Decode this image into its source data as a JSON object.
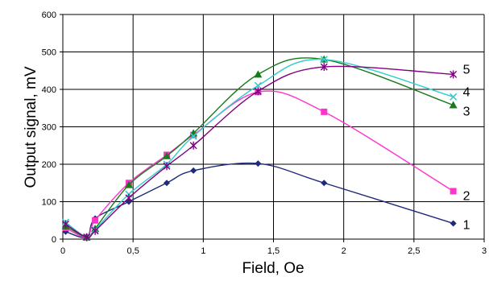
{
  "chart_data": {
    "type": "scatter",
    "title": "",
    "xlabel": "Field, Oe",
    "ylabel": "Output signal, mV",
    "xlim": [
      0,
      3
    ],
    "ylim": [
      0,
      600
    ],
    "x_ticks": [
      "0",
      "0,5",
      "1",
      "1,5",
      "2",
      "2,5",
      "3"
    ],
    "y_ticks": [
      "0",
      "100",
      "200",
      "300",
      "400",
      "500",
      "600"
    ],
    "x_tick_values": [
      0,
      0.5,
      1,
      1.5,
      2,
      2.5,
      3
    ],
    "y_tick_values": [
      0,
      100,
      200,
      300,
      400,
      500,
      600
    ],
    "grid": true,
    "legend": "inline labels at right end of each series",
    "series": [
      {
        "name": "1",
        "color": "#1F2A7A",
        "marker": "diamond",
        "x": [
          0.02,
          0.17,
          0.23,
          0.47,
          0.74,
          0.93,
          1.39,
          1.86,
          2.78
        ],
        "y": [
          20,
          5,
          55,
          100,
          150,
          183,
          202,
          150,
          42
        ]
      },
      {
        "name": "2",
        "color": "#FF33CC",
        "marker": "square",
        "x": [
          0.02,
          0.17,
          0.23,
          0.47,
          0.74,
          0.93,
          1.39,
          1.86,
          2.78
        ],
        "y": [
          30,
          5,
          50,
          150,
          225,
          278,
          393,
          340,
          128
        ]
      },
      {
        "name": "3",
        "color": "#1A7A1A",
        "marker": "triangle",
        "x": [
          0.02,
          0.17,
          0.23,
          0.47,
          0.74,
          0.93,
          1.39,
          1.86,
          2.78
        ],
        "y": [
          35,
          5,
          28,
          145,
          222,
          283,
          440,
          480,
          358
        ]
      },
      {
        "name": "4",
        "color": "#33CCCC",
        "marker": "x",
        "x": [
          0.02,
          0.17,
          0.23,
          0.47,
          0.74,
          0.93,
          1.39,
          1.86,
          2.78
        ],
        "y": [
          45,
          5,
          25,
          120,
          200,
          275,
          410,
          480,
          380
        ]
      },
      {
        "name": "5",
        "color": "#800080",
        "marker": "star",
        "x": [
          0.02,
          0.17,
          0.23,
          0.47,
          0.74,
          0.93,
          1.39,
          1.86,
          2.78
        ],
        "y": [
          40,
          5,
          22,
          110,
          195,
          250,
          395,
          460,
          440
        ]
      }
    ]
  }
}
